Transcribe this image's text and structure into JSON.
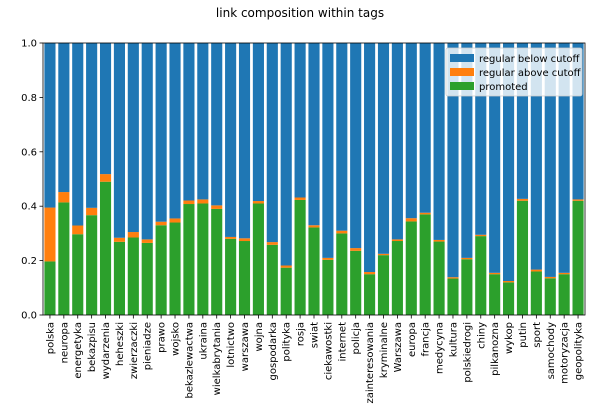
{
  "chart_data": {
    "type": "bar",
    "stacked": true,
    "title": "link composition within tags",
    "xlabel": "",
    "ylabel": "",
    "ylim": [
      0,
      1.0
    ],
    "yticks": [
      "0.0",
      "0.2",
      "0.4",
      "0.6",
      "0.8",
      "1.0"
    ],
    "grid": false,
    "legend_position": "top-right",
    "categories": [
      "polska",
      "neuropa",
      "energetyka",
      "bekazpisu",
      "wydarzenia",
      "heheszki",
      "zwierzaczki",
      "pieniadze",
      "prawo",
      "wojsko",
      "bekazlewactwa",
      "ukraina",
      "wielkabrytania",
      "lotnictwo",
      "warszawa",
      "wojna",
      "gospodarka",
      "polityka",
      "rosja",
      "swiat",
      "ciekawostki",
      "internet",
      "policja",
      "zainteresowania",
      "kryminalne",
      "Warszawa",
      "europa",
      "francja",
      "medycyna",
      "kultura",
      "polskiedrogi",
      "chiny",
      "pilkanozna",
      "wykop",
      "putin",
      "sport",
      "samochody",
      "motoryzacja",
      "geopolityka"
    ],
    "series": [
      {
        "name": "regular below cutoff",
        "color": "#1f77b4",
        "values": [
          0.605,
          0.548,
          0.671,
          0.606,
          0.482,
          0.716,
          0.695,
          0.722,
          0.657,
          0.645,
          0.579,
          0.575,
          0.597,
          0.713,
          0.718,
          0.581,
          0.732,
          0.818,
          0.568,
          0.67,
          0.79,
          0.69,
          0.754,
          0.842,
          0.775,
          0.722,
          0.644,
          0.624,
          0.724,
          0.861,
          0.79,
          0.705,
          0.845,
          0.875,
          0.573,
          0.833,
          0.86,
          0.845,
          0.575
        ]
      },
      {
        "name": "regular above cutoff",
        "color": "#ff7f0e",
        "values": [
          0.198,
          0.038,
          0.032,
          0.027,
          0.028,
          0.015,
          0.02,
          0.013,
          0.013,
          0.015,
          0.013,
          0.015,
          0.013,
          0.007,
          0.01,
          0.009,
          0.01,
          0.008,
          0.009,
          0.008,
          0.007,
          0.01,
          0.01,
          0.008,
          0.005,
          0.006,
          0.012,
          0.006,
          0.006,
          0.005,
          0.005,
          0.005,
          0.005,
          0.005,
          0.007,
          0.007,
          0.005,
          0.005,
          0.005
        ]
      },
      {
        "name": "promoted",
        "color": "#2ca02c",
        "values": [
          0.197,
          0.414,
          0.297,
          0.367,
          0.49,
          0.269,
          0.285,
          0.265,
          0.33,
          0.34,
          0.408,
          0.41,
          0.39,
          0.28,
          0.272,
          0.41,
          0.258,
          0.174,
          0.423,
          0.322,
          0.203,
          0.3,
          0.236,
          0.15,
          0.22,
          0.272,
          0.344,
          0.37,
          0.27,
          0.134,
          0.205,
          0.29,
          0.15,
          0.12,
          0.42,
          0.16,
          0.135,
          0.15,
          0.42
        ]
      }
    ]
  }
}
